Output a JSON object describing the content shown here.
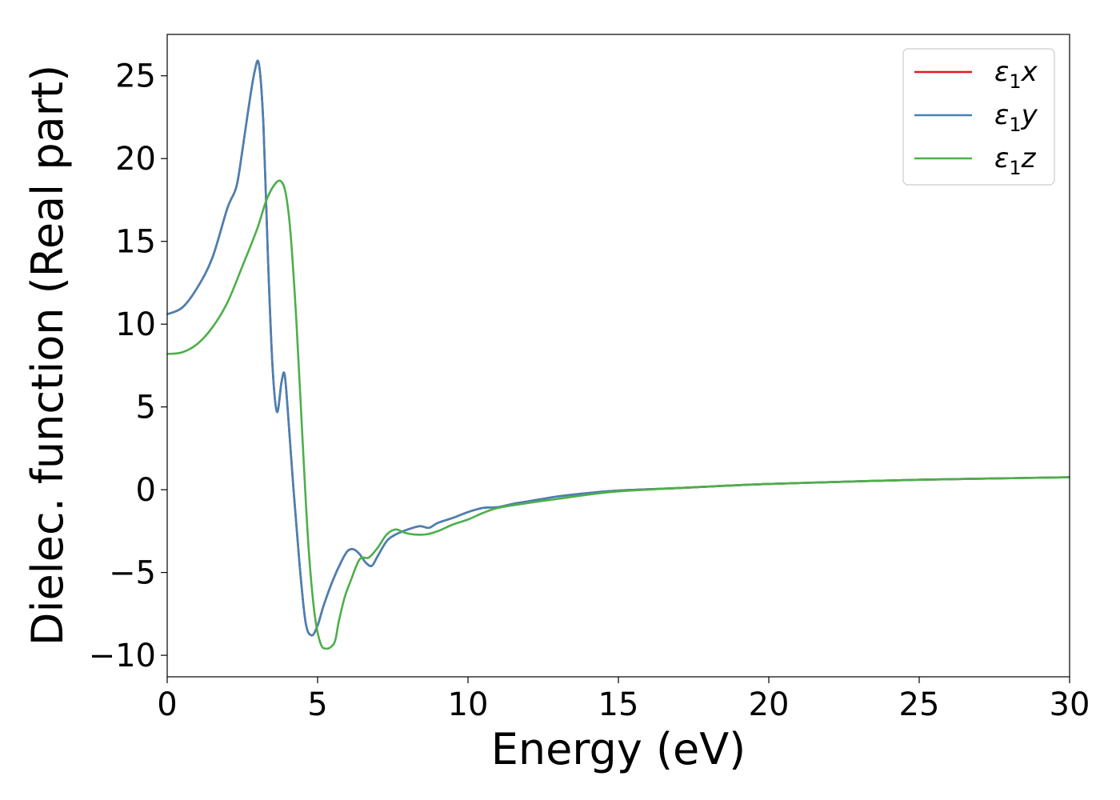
{
  "chart_data": {
    "type": "line",
    "title": "",
    "xlabel": "Energy (eV)",
    "ylabel": "Dielec. function (Real part)",
    "xlim": [
      0,
      30
    ],
    "ylim": [
      -11.3,
      27.5
    ],
    "xticks": [
      0,
      5,
      10,
      15,
      20,
      25,
      30
    ],
    "xtick_labels": [
      "0",
      "5",
      "10",
      "15",
      "20",
      "25",
      "30"
    ],
    "yticks": [
      -10,
      -5,
      0,
      5,
      10,
      15,
      20,
      25
    ],
    "ytick_labels": [
      "−10",
      "−5",
      "0",
      "5",
      "10",
      "15",
      "20",
      "25"
    ],
    "grid": false,
    "legend_position": "top-right",
    "series": [
      {
        "name": "ε₁x",
        "legend_main": "ε",
        "legend_sub": "1",
        "legend_var": "x",
        "color": "#e41a1c",
        "x": [
          0,
          0.5,
          1.0,
          1.5,
          2.0,
          2.3,
          2.5,
          2.7,
          2.9,
          3.05,
          3.2,
          3.35,
          3.5,
          3.65,
          3.8,
          3.9,
          4.0,
          4.2,
          4.4,
          4.6,
          4.8,
          5.0,
          5.2,
          5.5,
          5.8,
          6.0,
          6.2,
          6.4,
          6.6,
          6.8,
          7.0,
          7.3,
          7.6,
          8.0,
          8.4,
          8.7,
          9.0,
          9.5,
          10.0,
          10.5,
          11.0,
          11.5,
          12.0,
          12.5,
          13.0,
          14.0,
          15.0,
          17.0,
          20.0,
          25.0,
          30.0
        ],
        "y": [
          10.6,
          11.0,
          12.2,
          14.0,
          17.0,
          18.3,
          20.5,
          23.0,
          25.2,
          25.7,
          22.0,
          14.0,
          7.5,
          4.7,
          6.5,
          7.0,
          5.0,
          0.0,
          -4.5,
          -8.0,
          -8.8,
          -8.2,
          -7.0,
          -5.5,
          -4.3,
          -3.7,
          -3.6,
          -3.9,
          -4.4,
          -4.6,
          -4.0,
          -3.1,
          -2.7,
          -2.4,
          -2.2,
          -2.3,
          -2.0,
          -1.7,
          -1.35,
          -1.1,
          -1.05,
          -0.85,
          -0.7,
          -0.55,
          -0.4,
          -0.2,
          -0.05,
          0.1,
          0.35,
          0.6,
          0.75
        ]
      },
      {
        "name": "ε₁y",
        "legend_main": "ε",
        "legend_sub": "1",
        "legend_var": "y",
        "color": "#4682b4",
        "x": [
          0,
          0.5,
          1.0,
          1.5,
          2.0,
          2.3,
          2.5,
          2.7,
          2.9,
          3.05,
          3.2,
          3.35,
          3.5,
          3.65,
          3.8,
          3.9,
          4.0,
          4.2,
          4.4,
          4.6,
          4.8,
          5.0,
          5.2,
          5.5,
          5.8,
          6.0,
          6.2,
          6.4,
          6.6,
          6.8,
          7.0,
          7.3,
          7.6,
          8.0,
          8.4,
          8.7,
          9.0,
          9.5,
          10.0,
          10.5,
          11.0,
          11.5,
          12.0,
          12.5,
          13.0,
          14.0,
          15.0,
          17.0,
          20.0,
          25.0,
          30.0
        ],
        "y": [
          10.6,
          11.0,
          12.2,
          14.0,
          17.0,
          18.3,
          20.5,
          23.0,
          25.2,
          25.7,
          22.0,
          14.0,
          7.5,
          4.7,
          6.5,
          7.0,
          5.0,
          0.0,
          -4.5,
          -8.0,
          -8.8,
          -8.2,
          -7.0,
          -5.5,
          -4.3,
          -3.7,
          -3.6,
          -3.9,
          -4.4,
          -4.6,
          -4.0,
          -3.1,
          -2.7,
          -2.4,
          -2.2,
          -2.3,
          -2.0,
          -1.7,
          -1.35,
          -1.1,
          -1.05,
          -0.85,
          -0.7,
          -0.55,
          -0.4,
          -0.2,
          -0.05,
          0.1,
          0.35,
          0.6,
          0.75
        ]
      },
      {
        "name": "ε₁z",
        "legend_main": "ε",
        "legend_sub": "1",
        "legend_var": "z",
        "color": "#4daf4a",
        "x": [
          0,
          0.5,
          1.0,
          1.5,
          2.0,
          2.5,
          3.0,
          3.3,
          3.6,
          3.8,
          3.95,
          4.1,
          4.3,
          4.5,
          4.7,
          4.9,
          5.1,
          5.3,
          5.5,
          5.6,
          5.7,
          5.9,
          6.1,
          6.4,
          6.7,
          7.0,
          7.3,
          7.6,
          7.9,
          8.2,
          8.6,
          9.0,
          9.5,
          10.0,
          10.5,
          11.0,
          12.0,
          13.0,
          14.0,
          15.0,
          17.0,
          20.0,
          25.0,
          30.0
        ],
        "y": [
          8.2,
          8.3,
          8.8,
          9.8,
          11.3,
          13.5,
          15.8,
          17.5,
          18.5,
          18.6,
          17.8,
          15.5,
          10.0,
          3.0,
          -3.5,
          -7.5,
          -9.3,
          -9.6,
          -9.4,
          -9.0,
          -8.0,
          -6.5,
          -5.5,
          -4.2,
          -4.1,
          -3.5,
          -2.7,
          -2.4,
          -2.6,
          -2.7,
          -2.7,
          -2.5,
          -2.1,
          -1.8,
          -1.4,
          -1.1,
          -0.8,
          -0.55,
          -0.3,
          -0.1,
          0.1,
          0.35,
          0.6,
          0.75
        ]
      }
    ]
  }
}
